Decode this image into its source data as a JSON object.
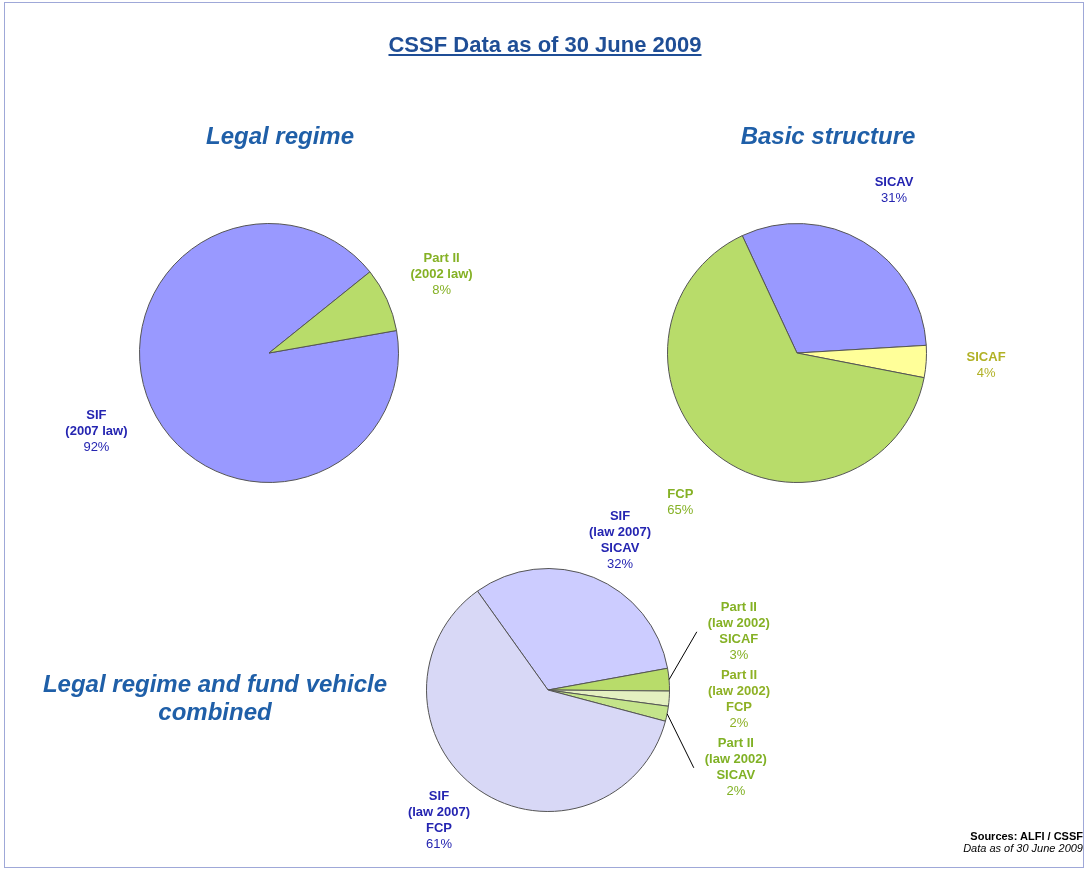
{
  "chart_data": [
    {
      "type": "other",
      "title": "CSSF Data as of 30 June 2009",
      "annotations": [
        "Sources: ALFI / CSSF",
        "Data as of 30 June 2009"
      ]
    },
    {
      "type": "pie",
      "title": "Legal regime",
      "categories": [
        "SIF (2007 law)",
        "Part II (2002 law)"
      ],
      "values": [
        92,
        8
      ],
      "colors": [
        "#9999ff",
        "#b8dc6a"
      ],
      "value_labels": [
        "92%",
        "8%"
      ],
      "legend": false
    },
    {
      "type": "pie",
      "title": "Basic structure",
      "categories": [
        "SICAV",
        "SICAF",
        "FCP"
      ],
      "values": [
        31,
        4,
        65
      ],
      "colors": [
        "#9999ff",
        "#ffff99",
        "#b8dc6a"
      ],
      "value_labels": [
        "31%",
        "4%",
        "65%"
      ],
      "legend": false
    },
    {
      "type": "pie",
      "title": "Legal regime and fund vehicle combined",
      "categories": [
        "SIF (law 2007) SICAV",
        "Part II (law 2002) SICAF",
        "Part II (law 2002) FCP",
        "Part II (law 2002) SICAV",
        "SIF (law 2007) FCP"
      ],
      "values": [
        32,
        3,
        2,
        2,
        61
      ],
      "colors": [
        "#ccccff",
        "#b8dc6a",
        "#e4f0c0",
        "#c4e48a",
        "#d8d8f6"
      ],
      "value_labels": [
        "32%",
        "3%",
        "2%",
        "2%",
        "61%"
      ],
      "legend": false
    }
  ]
}
